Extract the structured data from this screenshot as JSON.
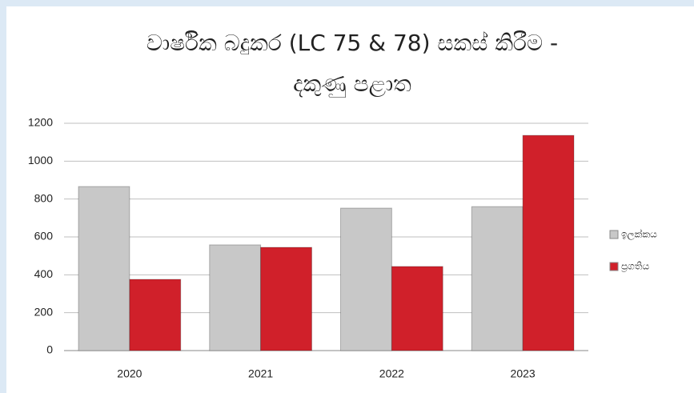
{
  "chart_data": {
    "type": "bar",
    "title": [
      "වාර්ෂික බදුකර (LC 75 & 78) සකස් කිරීම -",
      "දකුණු පළාත"
    ],
    "categories": [
      "2020",
      "2021",
      "2022",
      "2023"
    ],
    "series": [
      {
        "name": "ඉලක්කය",
        "color": "#c8c8c8",
        "values": [
          866,
          558,
          752,
          760
        ]
      },
      {
        "name": "ප්‍රගතිය",
        "color": "#d0202a",
        "values": [
          376,
          545,
          444,
          1136
        ]
      }
    ],
    "ylim": [
      0,
      1200
    ],
    "yticks": [
      0,
      200,
      400,
      600,
      800,
      1000,
      1200
    ],
    "grid": true,
    "legend": "right"
  }
}
